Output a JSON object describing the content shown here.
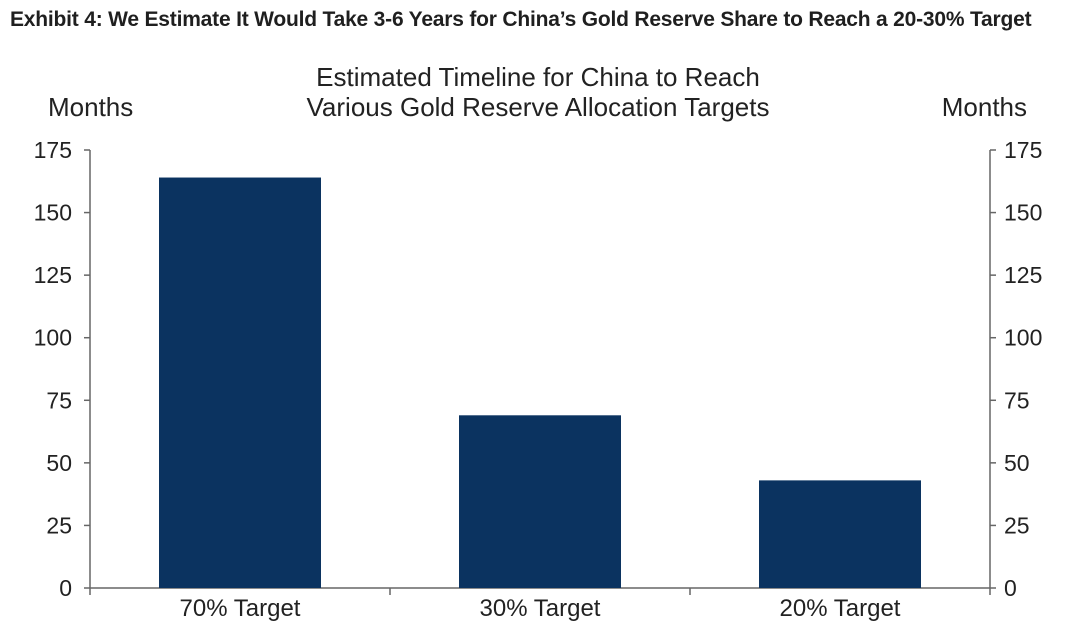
{
  "exhibit": {
    "title": "Exhibit 4: We Estimate It Would Take 3-6 Years for China’s Gold Reserve Share to Reach a 20-30% Target"
  },
  "chart_data": {
    "type": "bar",
    "title_lines": [
      "Estimated Timeline for China to Reach",
      "Various Gold Reserve Allocation Targets"
    ],
    "categories": [
      "70% Target",
      "30% Target",
      "20% Target"
    ],
    "values": [
      164,
      69,
      43
    ],
    "ylabel_left": "Months",
    "ylabel_right": "Months",
    "ylim": [
      0,
      175
    ],
    "yticks": [
      0,
      25,
      50,
      75,
      100,
      125,
      150,
      175
    ],
    "grid": false,
    "bar_color": "#0b3360",
    "axis_color": "#666666"
  }
}
